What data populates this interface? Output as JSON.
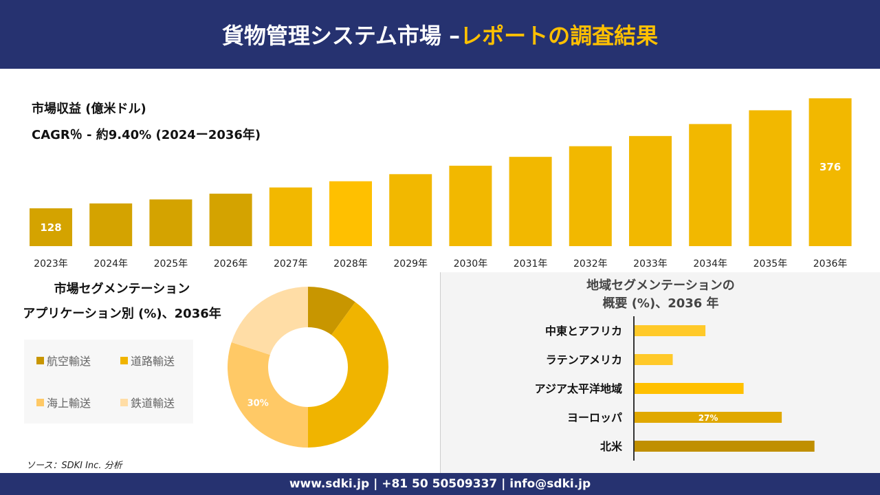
{
  "header": {
    "title_main": "貨物管理システム市場 –",
    "title_accent": "レポートの調査結果"
  },
  "chart_data": [
    {
      "type": "bar",
      "title": "市場収益 (億米ドル)",
      "subtitle": "CAGR％ - 約9.40% (2024ー2036年)",
      "categories": [
        "2023年",
        "2024年",
        "2025年",
        "2026年",
        "2027年",
        "2028年",
        "2029年",
        "2030年",
        "2031年",
        "2032年",
        "2033年",
        "2034年",
        "2035年",
        "2036年"
      ],
      "values": [
        128,
        139,
        148,
        161,
        175,
        189,
        205,
        224,
        244,
        268,
        291,
        318,
        349,
        376
      ],
      "data_labels": {
        "0": "128",
        "13": "376"
      },
      "ylim": [
        42,
        380
      ],
      "grid": false,
      "colors": [
        "#D4A300",
        "#D4A300",
        "#D4A300",
        "#D4A300",
        "#F2B800",
        "#FFC000",
        "#F2B800",
        "#F2B800",
        "#F2B800",
        "#F2B800",
        "#F2B800",
        "#F2B800",
        "#F2B800",
        "#F2B800"
      ]
    },
    {
      "type": "pie",
      "title": "市場セグメンテーション",
      "subtitle": "アプリケーション別 (%)、2036年",
      "categories": [
        "航空輸送",
        "道路輸送",
        "海上輸送",
        "鉄道輸送"
      ],
      "values": [
        10,
        40,
        30,
        20
      ],
      "colors": [
        "#C89600",
        "#F0B400",
        "#FFC966",
        "#FFDDA6"
      ],
      "data_labels": {
        "2": "30%"
      },
      "legend": "left"
    },
    {
      "type": "bar",
      "orientation": "horizontal",
      "title": "地域セグメンテーションの",
      "subtitle": "概要 (%)、2036 年",
      "categories": [
        "中東とアフリカ",
        "ラテンアメリカ",
        "アジア太平洋地域",
        "ヨーロッパ",
        "北米"
      ],
      "values": [
        13,
        7,
        20,
        27,
        33
      ],
      "data_labels": {
        "3": "27%"
      },
      "colors": [
        "#FFC929",
        "#FFC929",
        "#FFC000",
        "#E0A800",
        "#C08F00"
      ]
    }
  ],
  "source": "ソース：SDKI Inc. 分析",
  "footer": "www.sdki.jp | +81 50 50509337 | info@sdki.jp"
}
